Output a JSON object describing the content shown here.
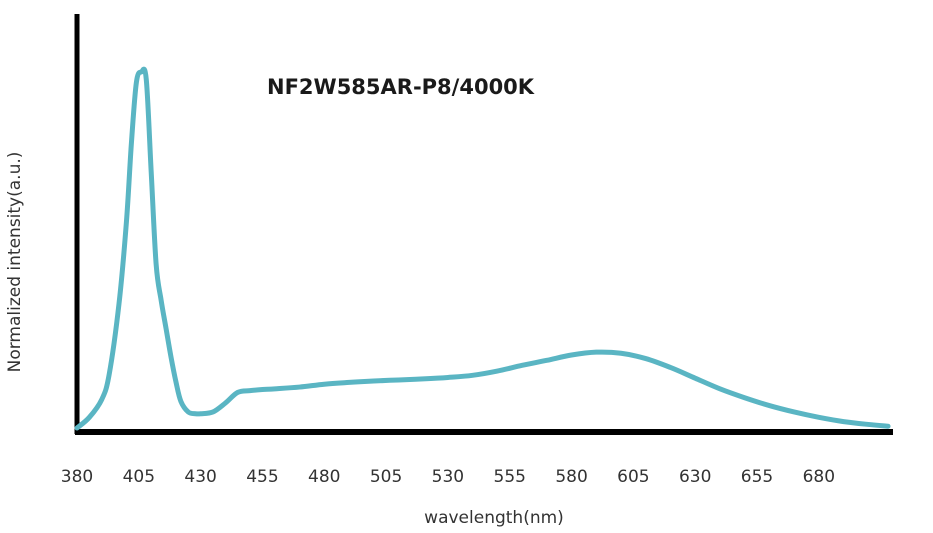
{
  "chart_data": {
    "type": "line",
    "title": "NF2W585AR-P8/4000K",
    "xlabel": "wavelength(nm)",
    "ylabel": "Normalized intensity(a.u.)",
    "x_ticks": [
      "380",
      "405",
      "430",
      "455",
      "480",
      "505",
      "530",
      "555",
      "580",
      "605",
      "630",
      "655",
      "680"
    ],
    "xlim": [
      380,
      710
    ],
    "ylim": [
      0,
      1
    ],
    "grid": false,
    "series": [
      {
        "color": "#5ab5c3",
        "x": [
          380,
          385,
          390,
          393,
          397,
          400,
          402,
          404,
          406,
          408,
          410,
          412,
          414,
          416,
          418,
          420,
          422,
          425,
          428,
          430,
          435,
          440,
          445,
          450,
          455,
          460,
          470,
          480,
          490,
          500,
          510,
          520,
          530,
          540,
          550,
          560,
          570,
          580,
          590,
          600,
          610,
          620,
          630,
          640,
          650,
          660,
          670,
          680,
          690,
          700,
          708
        ],
        "y": [
          0.0,
          0.03,
          0.08,
          0.15,
          0.35,
          0.58,
          0.8,
          0.97,
          1.0,
          0.98,
          0.72,
          0.46,
          0.36,
          0.28,
          0.2,
          0.13,
          0.075,
          0.045,
          0.04,
          0.04,
          0.045,
          0.07,
          0.1,
          0.105,
          0.108,
          0.11,
          0.115,
          0.123,
          0.128,
          0.132,
          0.135,
          0.138,
          0.142,
          0.148,
          0.16,
          0.176,
          0.19,
          0.205,
          0.213,
          0.21,
          0.195,
          0.17,
          0.14,
          0.11,
          0.085,
          0.063,
          0.045,
          0.03,
          0.018,
          0.01,
          0.005
        ]
      }
    ]
  }
}
